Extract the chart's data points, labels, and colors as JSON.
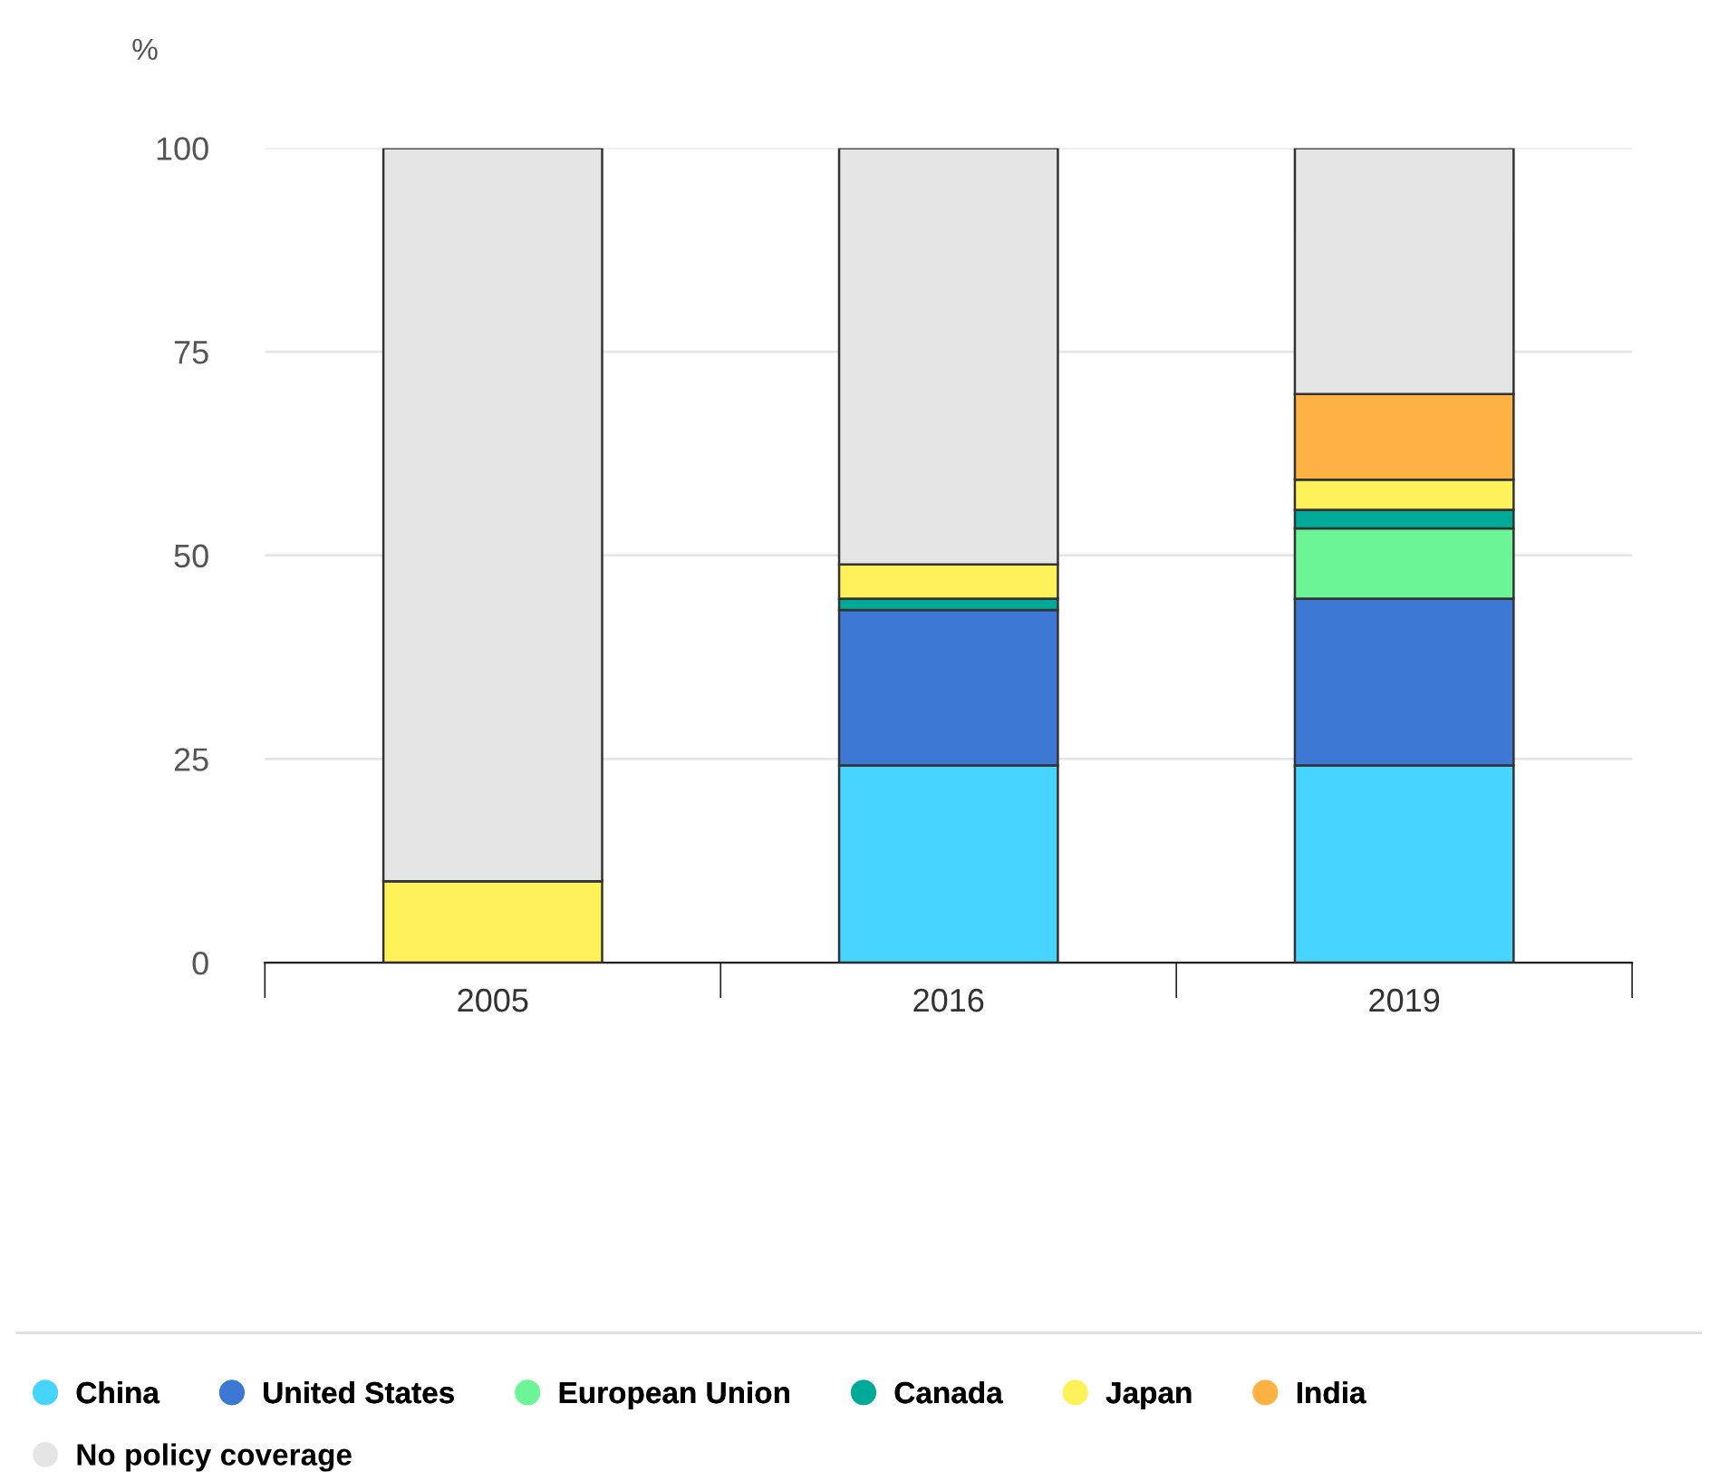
{
  "chart_data": {
    "type": "bar",
    "stacked": true,
    "ylabel": "%",
    "categories": [
      "2005",
      "2016",
      "2019"
    ],
    "series": [
      {
        "name": "China",
        "color": "#47d4ff",
        "values": [
          0,
          24.2,
          24.2
        ]
      },
      {
        "name": "United States",
        "color": "#3c78d4",
        "values": [
          0,
          19.1,
          20.5
        ]
      },
      {
        "name": "European Union",
        "color": "#6cf596",
        "values": [
          0,
          0,
          8.6
        ]
      },
      {
        "name": "Canada",
        "color": "#00aa98",
        "values": [
          0,
          1.4,
          2.3
        ]
      },
      {
        "name": "Japan",
        "color": "#fff15a",
        "values": [
          10,
          4.2,
          3.7
        ]
      },
      {
        "name": "India",
        "color": "#ffb244",
        "values": [
          0,
          0,
          10.5
        ]
      },
      {
        "name": "No policy coverage",
        "color": "#e5e5e5",
        "values": [
          90,
          51.1,
          30.2
        ]
      }
    ],
    "ylim": [
      0,
      100
    ],
    "yticks": [
      0,
      25,
      50,
      75,
      100
    ],
    "grid": "y",
    "legend": "bottom"
  }
}
